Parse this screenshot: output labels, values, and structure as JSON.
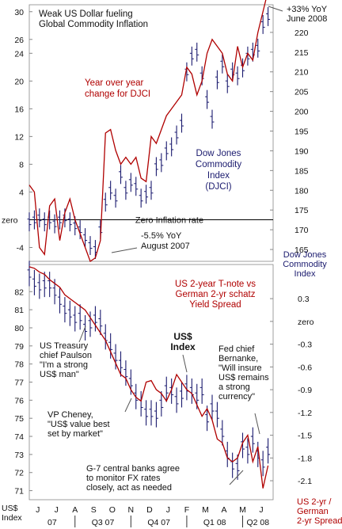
{
  "chart_data": [
    {
      "type": "line",
      "panel": "top",
      "title": "Weak US Dollar fueling\nGlobal Commodity Inflation",
      "left_axis": {
        "ticks": [
          30,
          26,
          24,
          20,
          16,
          12,
          8,
          4,
          0,
          -4
        ],
        "tick_labels": [
          "30",
          "26",
          "24",
          "20",
          "16",
          "12",
          "8",
          "4",
          "zero",
          "-4"
        ],
        "range": [
          -6,
          31
        ]
      },
      "right_axis": {
        "title": "Dow Jones\nCommodity\nIndex",
        "ticks": [
          220,
          215,
          210,
          205,
          200,
          195,
          190,
          185,
          180,
          175,
          170,
          165
        ],
        "range": [
          162,
          227
        ]
      },
      "series": [
        {
          "name": "Year over year\nchange for DJCI",
          "color": "#b00000",
          "kind": "line",
          "axis": "left",
          "x": [
            0,
            3,
            6,
            9,
            12,
            15,
            18,
            21,
            24,
            27,
            30,
            33,
            36,
            39,
            42,
            45,
            48,
            51,
            54,
            57,
            60,
            63,
            66,
            69,
            72,
            75,
            78,
            81,
            84,
            87,
            90,
            93,
            96,
            99,
            102,
            105,
            108,
            111,
            114,
            117,
            120,
            123,
            126,
            129,
            132,
            135,
            138,
            141
          ],
          "values": [
            5,
            4,
            -4,
            -5,
            2,
            3,
            -3,
            1,
            3,
            0,
            -2,
            -4,
            -6,
            -5.5,
            -3,
            12.5,
            13,
            10,
            8,
            9,
            8,
            9,
            6,
            5.5,
            12,
            11,
            13,
            15,
            16,
            17,
            18,
            22,
            21,
            18,
            20,
            24,
            26,
            25,
            24,
            21,
            20,
            25,
            22,
            24,
            23,
            27,
            30,
            33
          ]
        },
        {
          "name": "Dow Jones\nCommodity\nIndex\n(DJCI)",
          "color": "#1a1a6e",
          "kind": "ohlc",
          "axis": "right",
          "x": [
            0,
            3,
            6,
            9,
            12,
            15,
            18,
            21,
            24,
            27,
            30,
            33,
            36,
            39,
            42,
            45,
            48,
            51,
            54,
            57,
            60,
            63,
            66,
            69,
            72,
            75,
            78,
            81,
            84,
            87,
            90,
            93,
            96,
            99,
            102,
            105,
            108,
            111,
            114,
            117,
            120,
            123,
            126,
            129,
            132,
            135,
            138,
            141
          ],
          "values": [
            172,
            172.5,
            173,
            172,
            172.5,
            171.5,
            172.5,
            173,
            172,
            171,
            170,
            168,
            166,
            165,
            170,
            177,
            180,
            178,
            184,
            180,
            182,
            181,
            178,
            179,
            180,
            186,
            187,
            190,
            191,
            194,
            197,
            210,
            214,
            215,
            209,
            203,
            198,
            208,
            212,
            207,
            210,
            209,
            211,
            214,
            215,
            216,
            222,
            224
          ]
        }
      ],
      "annotations": [
        "-5.5% YoY\nAugust 2007",
        "Zero Inflation rate",
        "+33% YoY\nJune 2008"
      ]
    },
    {
      "type": "line",
      "panel": "bottom",
      "left_axis": {
        "ticks": [
          82,
          81,
          80,
          79,
          78,
          77,
          76,
          75,
          74,
          73,
          72,
          71
        ],
        "range": [
          70.5,
          83.5
        ]
      },
      "right_axis": {
        "title": "US 2-yr /\nGerman\n2-yr Spread",
        "ticks": [
          0.3,
          0,
          -0.3,
          -0.6,
          -0.9,
          -1.2,
          -1.5,
          -1.8,
          -2.1
        ],
        "tick_labels": [
          "0.3",
          "zero",
          "-0.3",
          "-0.6",
          "-0.9",
          "-1.2",
          "-1.5",
          "-1.8",
          "-2.1"
        ],
        "range": [
          -2.35,
          0.75
        ]
      },
      "series": [
        {
          "name": "US$\nIndex",
          "color": "#1a1a6e",
          "kind": "ohlc",
          "axis": "left",
          "x": [
            0,
            3,
            6,
            9,
            12,
            15,
            18,
            21,
            24,
            27,
            30,
            33,
            36,
            39,
            42,
            45,
            48,
            51,
            54,
            57,
            60,
            63,
            66,
            69,
            72,
            75,
            78,
            81,
            84,
            87,
            90,
            93,
            96,
            99,
            102,
            105,
            108,
            111,
            114,
            117,
            120,
            123,
            126,
            129,
            132,
            135,
            138,
            141
          ],
          "values": [
            83,
            82.5,
            82.3,
            82.4,
            82.4,
            82,
            81.5,
            81,
            80.8,
            80.5,
            80.6,
            80,
            80.2,
            80.5,
            80.3,
            79.5,
            79,
            78.4,
            78,
            77.5,
            77,
            76.2,
            75.8,
            75.3,
            75.3,
            75.2,
            75.8,
            76.6,
            76.5,
            76,
            76.3,
            76.7,
            76.5,
            76.2,
            76.5,
            75,
            75.6,
            75.2,
            74.2,
            73,
            72.4,
            72.3,
            73.5,
            73.2,
            73.8,
            73,
            72.5,
            73.2
          ]
        },
        {
          "name": "US 2-year T-note vs\nGerman 2-yr schatz\nYield Spread",
          "color": "#b00000",
          "kind": "line",
          "axis": "right",
          "x": [
            0,
            3,
            6,
            9,
            12,
            15,
            18,
            21,
            24,
            27,
            30,
            33,
            36,
            39,
            42,
            45,
            48,
            51,
            54,
            57,
            60,
            63,
            66,
            69,
            72,
            75,
            78,
            81,
            84,
            87,
            90,
            93,
            96,
            99,
            102,
            105,
            108,
            111,
            114,
            117,
            120,
            123,
            126,
            129,
            132,
            135,
            138,
            141
          ],
          "values": [
            0.72,
            0.7,
            0.65,
            0.62,
            0.55,
            0.5,
            0.45,
            0.35,
            0.3,
            0.25,
            0.2,
            0.15,
            0.05,
            -0.05,
            -0.15,
            -0.25,
            -0.4,
            -0.55,
            -0.7,
            -0.75,
            -0.9,
            -1,
            -1.05,
            -0.8,
            -0.78,
            -0.9,
            -0.95,
            -1.05,
            -0.9,
            -0.7,
            -0.8,
            -0.9,
            -0.95,
            -1.1,
            -1.25,
            -1.15,
            -1.3,
            -1.55,
            -1.6,
            -1.8,
            -1.85,
            -1.8,
            -1.6,
            -1.5,
            -1.85,
            -1.65,
            -2.2,
            -1.9
          ]
        }
      ],
      "annotations": [
        "US Treasury\nchief Paulson\n\"I'm a strong\nUS$ man\"",
        "VP Cheney,\n\"US$ value best\nset by market\"",
        "Fed chief\nBernanke,\n\"Will insure\nUS$ remains\na strong\ncurrency\"",
        "G-7 central banks agree\nto monitor FX rates\nclosely, act as needed"
      ],
      "x_axis": {
        "title": "US$\nIndex",
        "month_labels": [
          "J",
          "J",
          "A",
          "S",
          "O",
          "N",
          "D",
          "J",
          "F",
          "M",
          "A",
          "M",
          "J"
        ],
        "month_x": [
          5,
          16,
          27,
          38,
          49,
          60,
          71,
          82,
          93,
          104,
          115,
          126,
          137
        ],
        "quarter_labels": [
          "07",
          "Q3 07",
          "Q4 07",
          "Q1 08",
          "Q2 08"
        ],
        "quarter_x": [
          0,
          27,
          60,
          93,
          126
        ]
      }
    }
  ],
  "colors": {
    "red_line": "#b00000",
    "bars": "#1a1a6e",
    "arrow": "#555555"
  }
}
